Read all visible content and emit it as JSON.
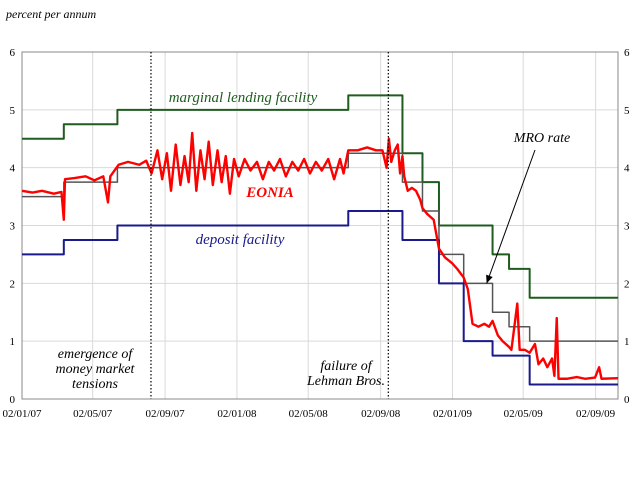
{
  "chart_data": {
    "type": "line",
    "ylabel": "percent per annum",
    "ylim": [
      0,
      6
    ],
    "yticks": [
      0,
      1,
      2,
      3,
      4,
      5,
      6
    ],
    "xlim": [
      "2007-01-02",
      "2009-10-10"
    ],
    "xtick_labels": [
      "02/01/07",
      "02/05/07",
      "02/09/07",
      "02/01/08",
      "02/05/08",
      "02/09/08",
      "02/01/09",
      "02/05/09",
      "02/09/09"
    ],
    "xtick_dates": [
      "2007-01-02",
      "2007-05-02",
      "2007-09-02",
      "2008-01-02",
      "2008-05-02",
      "2008-09-02",
      "2009-01-02",
      "2009-05-02",
      "2009-09-02"
    ],
    "grid": true,
    "series": [
      {
        "name": "marginal lending facility",
        "color": "#1f5c1f",
        "step": true,
        "points": [
          [
            "2007-01-02",
            4.5
          ],
          [
            "2007-03-14",
            4.75
          ],
          [
            "2007-06-13",
            5.0
          ],
          [
            "2008-07-09",
            5.25
          ],
          [
            "2008-10-09",
            4.25
          ],
          [
            "2008-11-12",
            3.75
          ],
          [
            "2008-12-10",
            3.0
          ],
          [
            "2009-01-21",
            3.0
          ],
          [
            "2009-03-11",
            2.5
          ],
          [
            "2009-04-08",
            2.25
          ],
          [
            "2009-05-13",
            1.75
          ],
          [
            "2009-10-10",
            1.75
          ]
        ]
      },
      {
        "name": "MRO rate",
        "color": "#555555",
        "step": true,
        "points": [
          [
            "2007-01-02",
            3.5
          ],
          [
            "2007-03-14",
            3.75
          ],
          [
            "2007-06-13",
            4.0
          ],
          [
            "2008-07-09",
            4.25
          ],
          [
            "2008-10-09",
            3.75
          ],
          [
            "2008-11-12",
            3.25
          ],
          [
            "2008-12-10",
            2.5
          ],
          [
            "2009-01-21",
            2.0
          ],
          [
            "2009-03-11",
            1.5
          ],
          [
            "2009-04-08",
            1.25
          ],
          [
            "2009-05-13",
            1.0
          ],
          [
            "2009-10-10",
            1.0
          ]
        ]
      },
      {
        "name": "deposit facility",
        "color": "#1a1a8c",
        "step": true,
        "points": [
          [
            "2007-01-02",
            2.5
          ],
          [
            "2007-03-14",
            2.75
          ],
          [
            "2007-06-13",
            3.0
          ],
          [
            "2008-07-09",
            3.25
          ],
          [
            "2008-10-09",
            2.75
          ],
          [
            "2008-11-12",
            2.75
          ],
          [
            "2008-12-10",
            2.0
          ],
          [
            "2009-01-21",
            1.0
          ],
          [
            "2009-03-11",
            0.75
          ],
          [
            "2009-05-13",
            0.25
          ],
          [
            "2009-10-10",
            0.25
          ]
        ]
      },
      {
        "name": "EONIA",
        "color": "#ff0000",
        "step": false,
        "points": [
          [
            "2007-01-02",
            3.6
          ],
          [
            "2007-01-20",
            3.57
          ],
          [
            "2007-02-05",
            3.6
          ],
          [
            "2007-02-25",
            3.55
          ],
          [
            "2007-03-10",
            3.58
          ],
          [
            "2007-03-14",
            3.1
          ],
          [
            "2007-03-16",
            3.8
          ],
          [
            "2007-04-01",
            3.82
          ],
          [
            "2007-04-20",
            3.85
          ],
          [
            "2007-05-05",
            3.78
          ],
          [
            "2007-05-20",
            3.85
          ],
          [
            "2007-05-28",
            3.4
          ],
          [
            "2007-06-01",
            3.85
          ],
          [
            "2007-06-15",
            4.05
          ],
          [
            "2007-07-01",
            4.1
          ],
          [
            "2007-07-20",
            4.05
          ],
          [
            "2007-08-01",
            4.12
          ],
          [
            "2007-08-10",
            3.9
          ],
          [
            "2007-08-20",
            4.3
          ],
          [
            "2007-08-28",
            3.8
          ],
          [
            "2007-09-05",
            4.25
          ],
          [
            "2007-09-12",
            3.6
          ],
          [
            "2007-09-20",
            4.4
          ],
          [
            "2007-09-28",
            3.7
          ],
          [
            "2007-10-05",
            4.2
          ],
          [
            "2007-10-12",
            3.75
          ],
          [
            "2007-10-18",
            4.6
          ],
          [
            "2007-10-25",
            3.6
          ],
          [
            "2007-11-01",
            4.3
          ],
          [
            "2007-11-08",
            3.8
          ],
          [
            "2007-11-15",
            4.45
          ],
          [
            "2007-11-22",
            3.7
          ],
          [
            "2007-11-30",
            4.3
          ],
          [
            "2007-12-07",
            3.75
          ],
          [
            "2007-12-14",
            4.2
          ],
          [
            "2007-12-21",
            3.55
          ],
          [
            "2007-12-28",
            4.15
          ],
          [
            "2008-01-05",
            3.85
          ],
          [
            "2008-01-15",
            4.15
          ],
          [
            "2008-01-25",
            3.95
          ],
          [
            "2008-02-05",
            4.1
          ],
          [
            "2008-02-15",
            3.8
          ],
          [
            "2008-02-25",
            4.1
          ],
          [
            "2008-03-05",
            3.95
          ],
          [
            "2008-03-15",
            4.15
          ],
          [
            "2008-03-25",
            3.85
          ],
          [
            "2008-04-05",
            4.1
          ],
          [
            "2008-04-15",
            3.95
          ],
          [
            "2008-04-25",
            4.15
          ],
          [
            "2008-05-05",
            3.9
          ],
          [
            "2008-05-15",
            4.1
          ],
          [
            "2008-05-25",
            3.95
          ],
          [
            "2008-06-05",
            4.15
          ],
          [
            "2008-06-15",
            3.8
          ],
          [
            "2008-06-25",
            4.15
          ],
          [
            "2008-07-01",
            3.9
          ],
          [
            "2008-07-09",
            4.3
          ],
          [
            "2008-07-25",
            4.3
          ],
          [
            "2008-08-10",
            4.35
          ],
          [
            "2008-08-25",
            4.3
          ],
          [
            "2008-09-05",
            4.3
          ],
          [
            "2008-09-12",
            4.0
          ],
          [
            "2008-09-16",
            4.5
          ],
          [
            "2008-09-20",
            4.1
          ],
          [
            "2008-09-26",
            4.3
          ],
          [
            "2008-10-01",
            4.4
          ],
          [
            "2008-10-05",
            3.9
          ],
          [
            "2008-10-09",
            4.2
          ],
          [
            "2008-10-12",
            3.85
          ],
          [
            "2008-10-18",
            3.6
          ],
          [
            "2008-10-25",
            3.65
          ],
          [
            "2008-11-01",
            3.6
          ],
          [
            "2008-11-08",
            3.45
          ],
          [
            "2008-11-12",
            3.3
          ],
          [
            "2008-11-20",
            3.2
          ],
          [
            "2008-12-01",
            3.1
          ],
          [
            "2008-12-10",
            2.6
          ],
          [
            "2008-12-20",
            2.45
          ],
          [
            "2009-01-01",
            2.35
          ],
          [
            "2009-01-10",
            2.25
          ],
          [
            "2009-01-21",
            2.1
          ],
          [
            "2009-01-28",
            1.9
          ],
          [
            "2009-02-05",
            1.3
          ],
          [
            "2009-02-15",
            1.25
          ],
          [
            "2009-02-25",
            1.3
          ],
          [
            "2009-03-05",
            1.25
          ],
          [
            "2009-03-11",
            1.35
          ],
          [
            "2009-03-20",
            1.1
          ],
          [
            "2009-03-28",
            1.0
          ],
          [
            "2009-04-08",
            0.9
          ],
          [
            "2009-04-12",
            0.85
          ],
          [
            "2009-04-22",
            1.65
          ],
          [
            "2009-04-26",
            0.85
          ],
          [
            "2009-05-05",
            0.85
          ],
          [
            "2009-05-13",
            0.8
          ],
          [
            "2009-05-22",
            0.95
          ],
          [
            "2009-05-28",
            0.6
          ],
          [
            "2009-06-05",
            0.7
          ],
          [
            "2009-06-12",
            0.55
          ],
          [
            "2009-06-20",
            0.7
          ],
          [
            "2009-06-24",
            0.4
          ],
          [
            "2009-06-28",
            1.4
          ],
          [
            "2009-07-01",
            0.35
          ],
          [
            "2009-07-15",
            0.35
          ],
          [
            "2009-08-01",
            0.38
          ],
          [
            "2009-08-15",
            0.35
          ],
          [
            "2009-09-01",
            0.37
          ],
          [
            "2009-09-08",
            0.55
          ],
          [
            "2009-09-12",
            0.35
          ],
          [
            "2009-10-10",
            0.36
          ]
        ]
      }
    ],
    "vlines": [
      {
        "date": "2007-08-09",
        "style": "dotted",
        "label": [
          "emergence of",
          "money market",
          "tensions"
        ]
      },
      {
        "date": "2008-09-15",
        "style": "dotted",
        "label": [
          "failure of",
          "Lehman Bros."
        ]
      }
    ],
    "annotations": [
      {
        "text": "MRO rate",
        "arrow_to": [
          "2009-03-01",
          2.0
        ]
      }
    ]
  }
}
